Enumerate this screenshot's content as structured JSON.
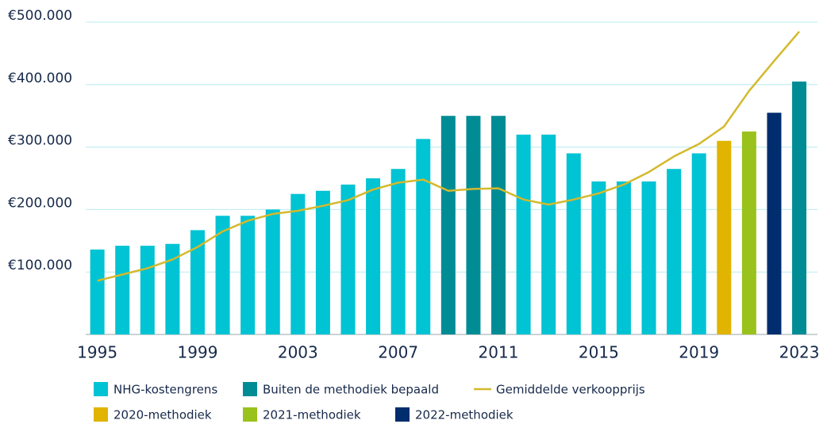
{
  "chart_data": {
    "type": "bar",
    "x": [
      1995,
      1996,
      1997,
      1998,
      1999,
      2000,
      2001,
      2002,
      2003,
      2004,
      2005,
      2006,
      2007,
      2008,
      2009,
      2010,
      2011,
      2012,
      2013,
      2014,
      2015,
      2016,
      2017,
      2018,
      2019,
      2020,
      2021,
      2022,
      2023
    ],
    "xlim": [
      1994.6,
      2023.6
    ],
    "xticks": [
      1995,
      1999,
      2003,
      2007,
      2011,
      2015,
      2019,
      2023
    ],
    "ylim": [
      0,
      500000
    ],
    "yticks": [
      {
        "value": 100000,
        "label": "€100.000"
      },
      {
        "value": 200000,
        "label": "€200.000"
      },
      {
        "value": 300000,
        "label": "€300.000"
      },
      {
        "value": 400000,
        "label": "€400.000"
      },
      {
        "value": 500000,
        "label": "€500.000"
      }
    ],
    "grid": true,
    "legend": "bottom",
    "series": [
      {
        "name": "NHG-kostengrens",
        "type": "bar",
        "color": "#00c3d3",
        "values": [
          136000,
          142000,
          142000,
          145000,
          167000,
          190000,
          190000,
          200000,
          225000,
          230000,
          240000,
          250000,
          265000,
          313000,
          null,
          null,
          null,
          320000,
          320000,
          290000,
          245000,
          245000,
          245000,
          265000,
          290000,
          null,
          null,
          null,
          null
        ]
      },
      {
        "name": "Buiten de methodiek bepaald",
        "type": "bar",
        "color": "#008c95",
        "values": [
          null,
          null,
          null,
          null,
          null,
          null,
          null,
          null,
          null,
          null,
          null,
          null,
          null,
          null,
          350000,
          350000,
          350000,
          null,
          null,
          null,
          null,
          null,
          null,
          null,
          null,
          null,
          null,
          null,
          405000
        ]
      },
      {
        "name": "Gemiddelde verkoopprijs",
        "type": "line",
        "color": "#d4b92c",
        "values": [
          86000,
          96000,
          106000,
          120000,
          140000,
          165000,
          182000,
          193000,
          198000,
          206000,
          215000,
          232000,
          243000,
          248000,
          230000,
          233000,
          234000,
          216000,
          208000,
          216000,
          226000,
          240000,
          260000,
          285000,
          305000,
          333000,
          390000,
          438000,
          485000
        ]
      },
      {
        "name": "2020-methodiek",
        "type": "bar",
        "color": "#e0b400",
        "values": [
          null,
          null,
          null,
          null,
          null,
          null,
          null,
          null,
          null,
          null,
          null,
          null,
          null,
          null,
          null,
          null,
          null,
          null,
          null,
          null,
          null,
          null,
          null,
          null,
          null,
          310000,
          null,
          null,
          null
        ]
      },
      {
        "name": "2021-methodiek",
        "type": "bar",
        "color": "#99c21c",
        "values": [
          null,
          null,
          null,
          null,
          null,
          null,
          null,
          null,
          null,
          null,
          null,
          null,
          null,
          null,
          null,
          null,
          null,
          null,
          null,
          null,
          null,
          null,
          null,
          null,
          null,
          null,
          325000,
          null,
          null
        ]
      },
      {
        "name": "2022-methodiek",
        "type": "bar",
        "color": "#002d6e",
        "values": [
          null,
          null,
          null,
          null,
          null,
          null,
          null,
          null,
          null,
          null,
          null,
          null,
          null,
          null,
          null,
          null,
          null,
          null,
          null,
          null,
          null,
          null,
          null,
          null,
          null,
          null,
          null,
          355000,
          null
        ]
      }
    ]
  }
}
